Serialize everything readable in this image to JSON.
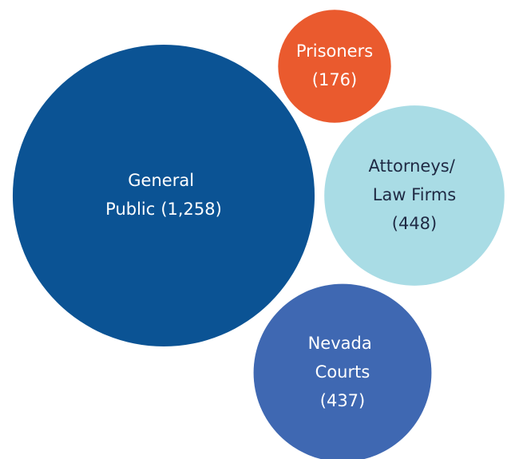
{
  "chart_data": {
    "type": "bubble",
    "categories": [
      "General Public",
      "Prisoners",
      "Attorneys/ Law Firms",
      "Nevada Courts"
    ],
    "values": [
      1258,
      176,
      448,
      437
    ],
    "value_labels": [
      "(1,258)",
      "(176)",
      "(448)",
      "(437)"
    ],
    "colors": [
      "#0b5394",
      "#ea5a2e",
      "#a9dce5",
      "#3f68b2"
    ]
  }
}
